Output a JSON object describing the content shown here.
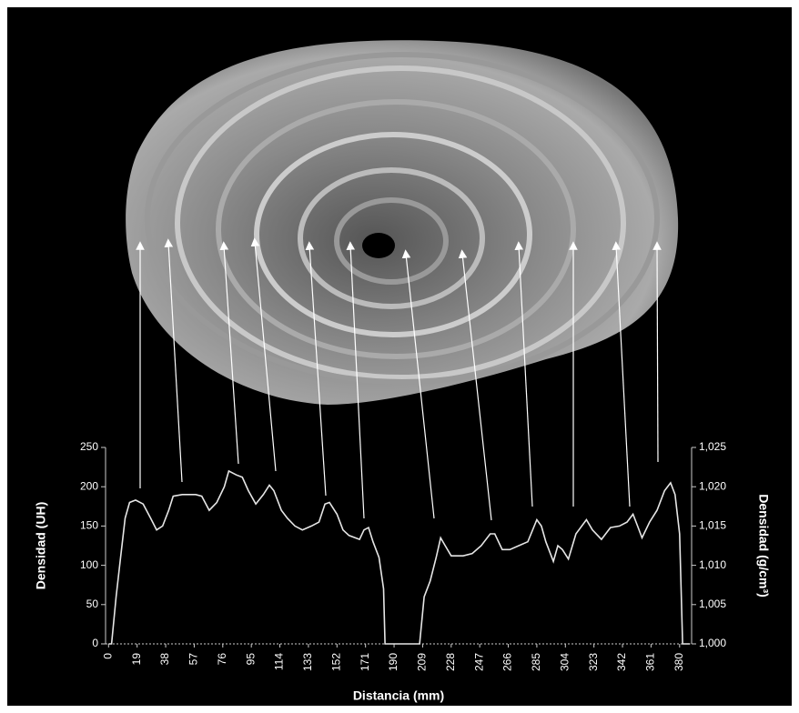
{
  "chart_data": {
    "type": "line",
    "y_label": "Densidad (UH)",
    "y2_label": "Densidad (g/cm³)",
    "x_label": "Distancia (mm)",
    "x": [
      0,
      2,
      5,
      8,
      11,
      14,
      18,
      23,
      28,
      32,
      36,
      40,
      43,
      49,
      58,
      62,
      67,
      72,
      77,
      80,
      85,
      89,
      93,
      98,
      103,
      107,
      110,
      115,
      119,
      124,
      129,
      135,
      140,
      144,
      147,
      152,
      156,
      160,
      167,
      170,
      173,
      176,
      180,
      183,
      184,
      207,
      210,
      214,
      218,
      221,
      224,
      228,
      236,
      242,
      248,
      254,
      257,
      262,
      267,
      273,
      279,
      285,
      288,
      291,
      296,
      299,
      302,
      306,
      311,
      318,
      322,
      328,
      334,
      340,
      345,
      349,
      352,
      355,
      360,
      365,
      370,
      374,
      377,
      380,
      382,
      387
    ],
    "values": [
      0,
      0,
      60,
      110,
      160,
      180,
      183,
      178,
      160,
      145,
      150,
      170,
      188,
      190,
      190,
      188,
      170,
      180,
      200,
      220,
      215,
      212,
      195,
      178,
      190,
      202,
      195,
      170,
      160,
      150,
      145,
      150,
      155,
      178,
      180,
      165,
      145,
      138,
      133,
      145,
      148,
      130,
      110,
      70,
      0,
      0,
      60,
      80,
      110,
      135,
      125,
      112,
      112,
      115,
      125,
      140,
      140,
      120,
      120,
      125,
      130,
      158,
      150,
      130,
      105,
      125,
      120,
      108,
      140,
      158,
      145,
      133,
      148,
      150,
      155,
      165,
      150,
      135,
      155,
      170,
      195,
      205,
      190,
      140,
      0,
      0
    ],
    "color": "#e6e6e6",
    "xlim": [
      -2,
      388
    ],
    "xticks": [
      0,
      19,
      38,
      57,
      76,
      95,
      114,
      133,
      152,
      171,
      190,
      209,
      228,
      247,
      266,
      285,
      304,
      323,
      342,
      361,
      380
    ],
    "ylim": [
      0,
      250
    ],
    "yticks": [
      0,
      50,
      100,
      150,
      200,
      250
    ],
    "y2lim": [
      1.0,
      1.025
    ],
    "y2ticks": [
      {
        "value": 1.0,
        "label": "1,000"
      },
      {
        "value": 1.005,
        "label": "1,005"
      },
      {
        "value": 1.01,
        "label": "1,010"
      },
      {
        "value": 1.015,
        "label": "1,015"
      },
      {
        "value": 1.02,
        "label": "1,020"
      },
      {
        "value": 1.025,
        "label": "1,025"
      }
    ]
  }
}
